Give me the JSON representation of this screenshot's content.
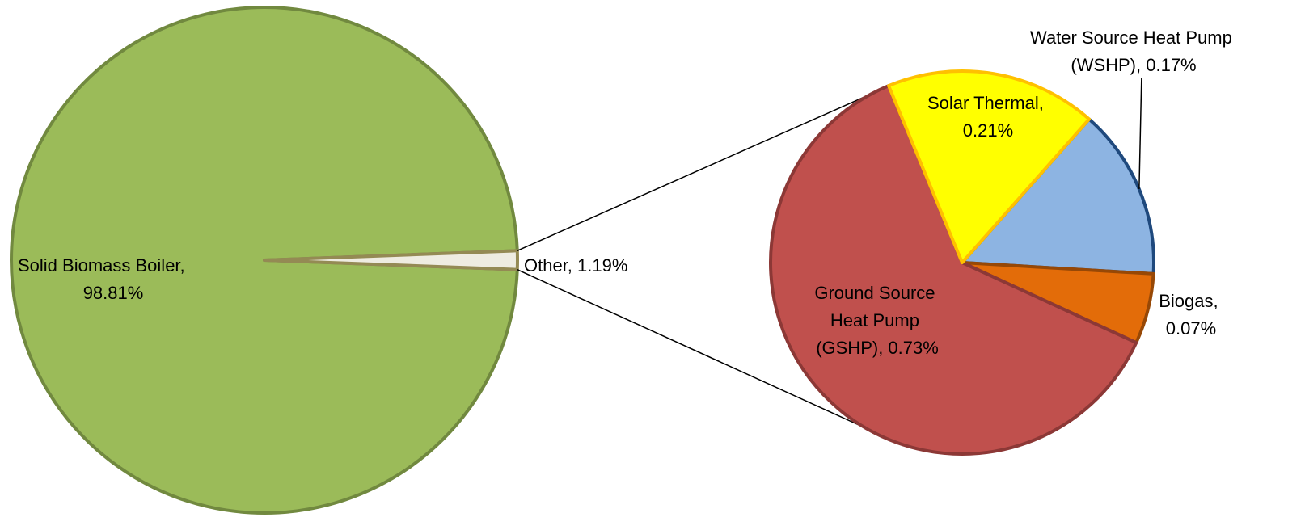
{
  "chart_data": {
    "type": "pie",
    "subtype": "pie-of-pie",
    "main_pie": {
      "slices": [
        {
          "label": "Solid Biomass Boiler",
          "value": 98.81,
          "display": "98.81%",
          "color": "#9BBB59",
          "stroke": "#71893F"
        },
        {
          "label": "Other",
          "value": 1.19,
          "display": "1.19%",
          "color": "#EEECE1",
          "stroke": "#948A54"
        }
      ]
    },
    "secondary_pie": {
      "slices": [
        {
          "label": "Water Source Heat Pump (WSHP)",
          "value": 0.17,
          "display": "0.17%",
          "color": "#8DB4E2",
          "stroke": "#1F497D"
        },
        {
          "label": "Biogas",
          "value": 0.07,
          "display": "0.07%",
          "color": "#E36C09",
          "stroke": "#974806"
        },
        {
          "label": "Ground Source Heat Pump (GSHP)",
          "value": 0.73,
          "display": "0.73%",
          "color": "#C0504D",
          "stroke": "#8C3836"
        },
        {
          "label": "Solar Thermal",
          "value": 0.21,
          "display": "0.21%",
          "color": "#FFFF00",
          "stroke": "#FFC000"
        }
      ]
    },
    "labels": {
      "solid_biomass": [
        "Solid Biomass Boiler,",
        "98.81%"
      ],
      "other": [
        "Other, 1.19%"
      ],
      "wshp": [
        "Water Source Heat Pump",
        "(WSHP), 0.17%"
      ],
      "biogas": [
        "Biogas,",
        "0.07%"
      ],
      "gshp": [
        "Ground Source",
        "Heat Pump",
        "(GSHP), 0.73%"
      ],
      "solar": [
        "Solar Thermal,",
        "0.21%"
      ]
    }
  }
}
